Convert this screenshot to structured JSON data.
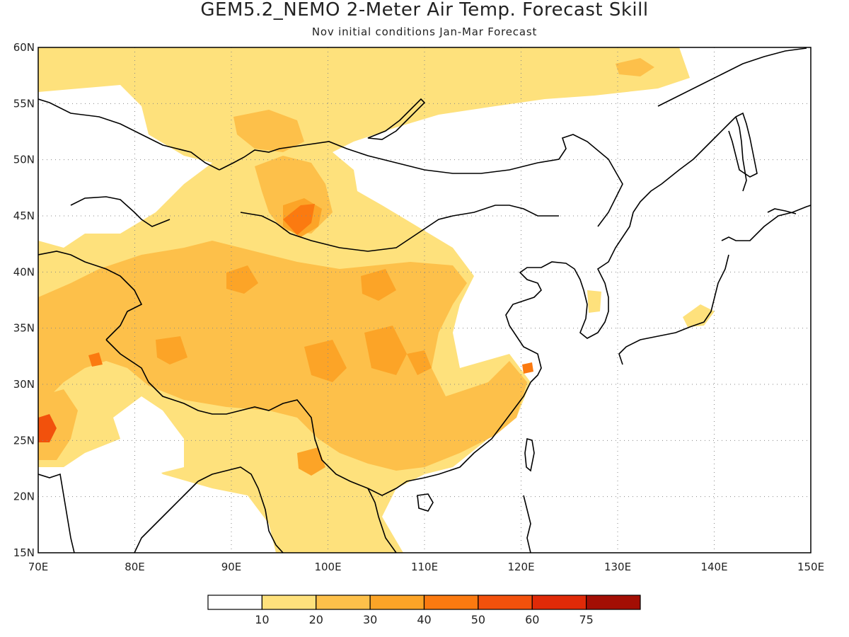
{
  "title": "GEM5.2_NEMO 2-Meter Air Temp. Forecast Skill",
  "subtitle": "Nov initial conditions  Jan-Mar Forecast",
  "map": {
    "lon_range": [
      70,
      150
    ],
    "lat_range": [
      15,
      60
    ],
    "x_ticks": [
      "70E",
      "80E",
      "90E",
      "100E",
      "110E",
      "120E",
      "130E",
      "140E",
      "150E"
    ],
    "y_ticks": [
      "15N",
      "20N",
      "25N",
      "30N",
      "35N",
      "40N",
      "45N",
      "50N",
      "55N",
      "60N"
    ],
    "grid": "dotted"
  },
  "legend": {
    "labels": [
      "10",
      "20",
      "30",
      "40",
      "50",
      "60",
      "75"
    ],
    "colors": [
      "#ffffff",
      "#fee17c",
      "#fdc04a",
      "#fca427",
      "#fb7a10",
      "#f2510c",
      "#e02a08",
      "#a30e04"
    ]
  }
}
